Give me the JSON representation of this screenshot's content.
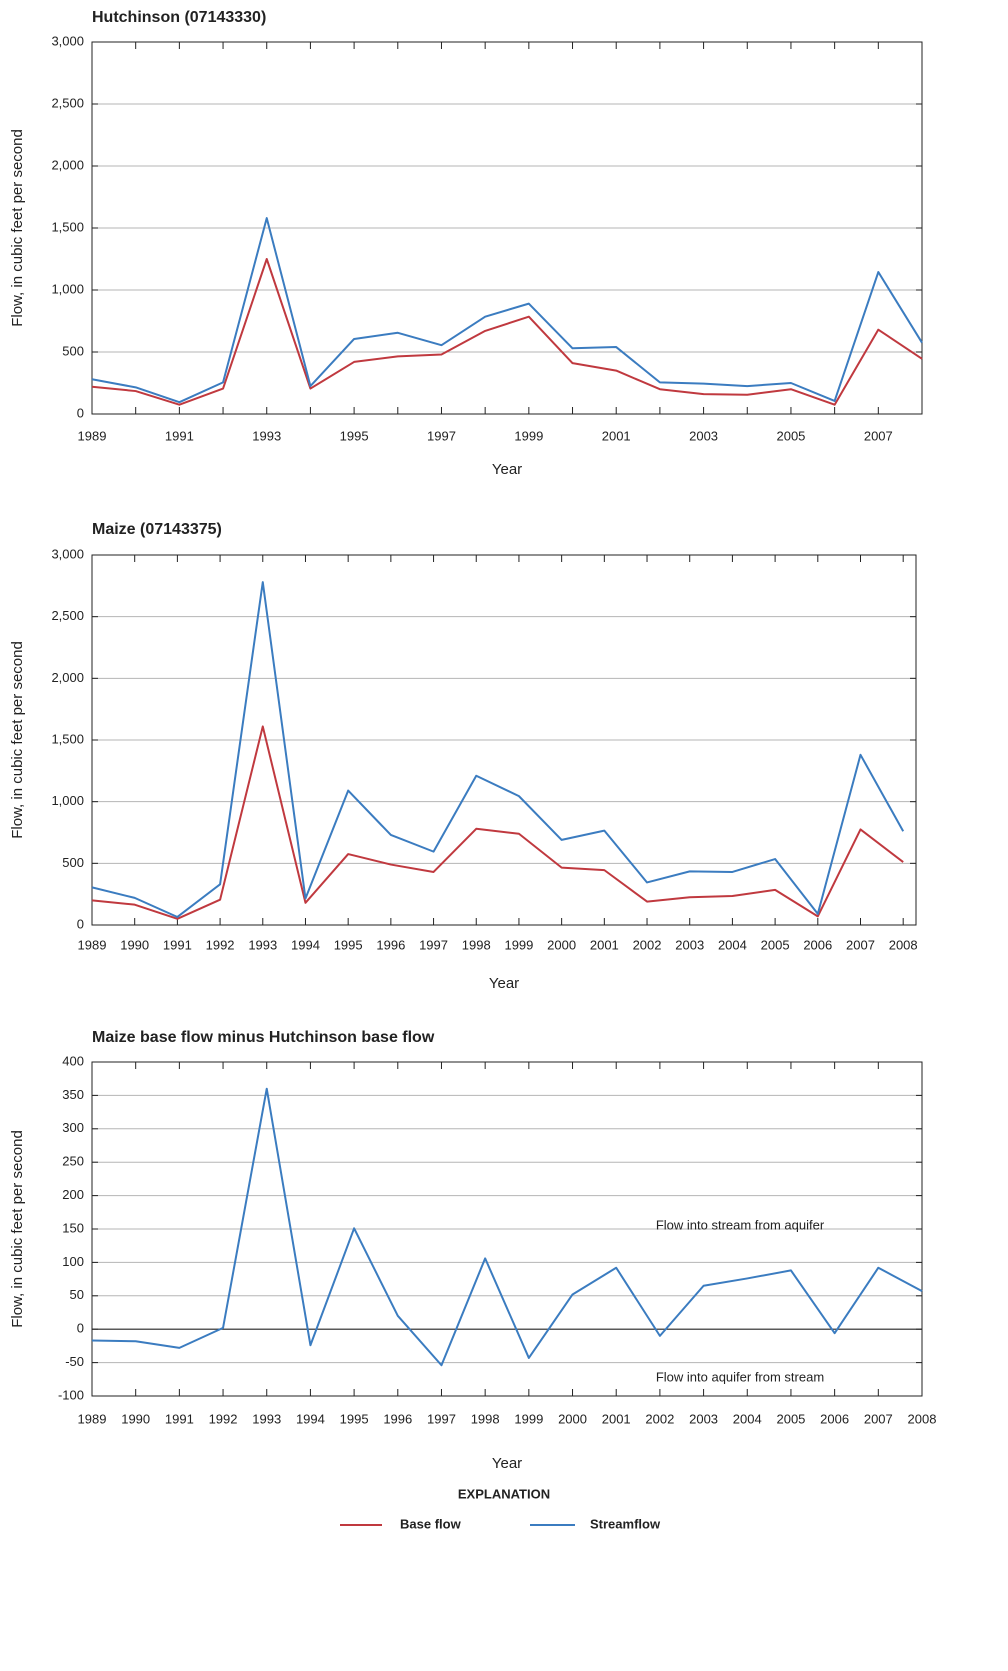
{
  "legend_title": "EXPLANATION",
  "chart_data": [
    {
      "type": "line",
      "title": "Hutchinson (07143330)",
      "x_label": "Year",
      "y_label": "Flow, in cubic feet per second",
      "x": [
        1989,
        1990,
        1991,
        1992,
        1993,
        1994,
        1995,
        1996,
        1997,
        1998,
        1999,
        2000,
        2001,
        2002,
        2003,
        2004,
        2005,
        2006,
        2007,
        2008
      ],
      "series": [
        {
          "name": "Base flow",
          "color": "#c0393f",
          "values": [
            220,
            185,
            75,
            205,
            1250,
            205,
            420,
            465,
            480,
            670,
            785,
            410,
            350,
            200,
            160,
            155,
            200,
            75,
            680,
            445
          ]
        },
        {
          "name": "Streamflow",
          "color": "#3b7cc0",
          "values": [
            280,
            215,
            95,
            255,
            1580,
            225,
            605,
            655,
            555,
            785,
            890,
            530,
            540,
            255,
            245,
            225,
            250,
            105,
            1145,
            575
          ]
        }
      ],
      "xlim": [
        1989,
        2008
      ],
      "xticks": [
        1989,
        1991,
        1993,
        1995,
        1997,
        1999,
        2001,
        2003,
        2005,
        2007
      ],
      "ylim": [
        0,
        3000
      ],
      "yticks": [
        0,
        500,
        {
          "value": 1000,
          "label": "1,000"
        },
        {
          "value": 1500,
          "label": "1,500"
        },
        {
          "value": 2000,
          "label": "2,000"
        },
        {
          "value": 2500,
          "label": "2,500"
        },
        {
          "value": 3000,
          "label": "3,000"
        }
      ],
      "grid": true
    },
    {
      "type": "line",
      "title": "Maize (07143375)",
      "x_label": "Year",
      "y_label": "Flow, in cubic feet per second",
      "x": [
        1989,
        1990,
        1991,
        1992,
        1993,
        1994,
        1995,
        1996,
        1997,
        1998,
        1999,
        2000,
        2001,
        2002,
        2003,
        2004,
        2005,
        2006,
        2007,
        2008
      ],
      "series": [
        {
          "name": "Base flow",
          "color": "#c0393f",
          "values": [
            200,
            165,
            50,
            205,
            1610,
            180,
            575,
            490,
            430,
            780,
            740,
            465,
            445,
            190,
            225,
            235,
            285,
            70,
            775,
            510
          ]
        },
        {
          "name": "Streamflow",
          "color": "#3b7cc0",
          "values": [
            305,
            220,
            65,
            330,
            2780,
            215,
            1090,
            730,
            595,
            1210,
            1045,
            690,
            765,
            345,
            435,
            430,
            535,
            90,
            1380,
            760
          ]
        }
      ],
      "xlim": [
        1989,
        2008.3
      ],
      "xticks": [
        1989,
        1990,
        1991,
        1992,
        1993,
        1994,
        1995,
        1996,
        1997,
        1998,
        1999,
        2000,
        2001,
        2002,
        2003,
        2004,
        2005,
        2006,
        2007,
        2008
      ],
      "ylim": [
        0,
        3000
      ],
      "yticks": [
        0,
        500,
        {
          "value": 1000,
          "label": "1,000"
        },
        {
          "value": 1500,
          "label": "1,500"
        },
        {
          "value": 2000,
          "label": "2,000"
        },
        {
          "value": 2500,
          "label": "2,500"
        },
        {
          "value": 3000,
          "label": "3,000"
        }
      ],
      "grid": true
    },
    {
      "type": "line",
      "title": "Maize base flow minus Hutchinson base flow",
      "x_label": "Year",
      "y_label": "Flow, in cubic feet per second",
      "x": [
        1989,
        1990,
        1991,
        1992,
        1993,
        1994,
        1995,
        1996,
        1997,
        1998,
        1999,
        2000,
        2001,
        2002,
        2003,
        2004,
        2005,
        2006,
        2007,
        2008
      ],
      "series": [
        {
          "color": "#3b7cc0",
          "values": [
            -17,
            -18,
            -28,
            2,
            360,
            -24,
            151,
            20,
            -54,
            106,
            -43,
            52,
            92,
            -10,
            65,
            76,
            88,
            -6,
            92,
            57
          ]
        }
      ],
      "xlim": [
        1989,
        2008
      ],
      "xticks": [
        1989,
        1990,
        1991,
        1992,
        1993,
        1994,
        1995,
        1996,
        1997,
        1998,
        1999,
        2000,
        2001,
        2002,
        2003,
        2004,
        2005,
        2006,
        2007,
        2008
      ],
      "ylim": [
        -100,
        400
      ],
      "yticks": [
        -100,
        -50,
        0,
        50,
        100,
        150,
        200,
        250,
        300,
        350,
        400
      ],
      "grid": true,
      "zero_line": true,
      "annotations": [
        "Flow into stream from aquifer",
        "Flow into aquifer from stream"
      ]
    }
  ]
}
